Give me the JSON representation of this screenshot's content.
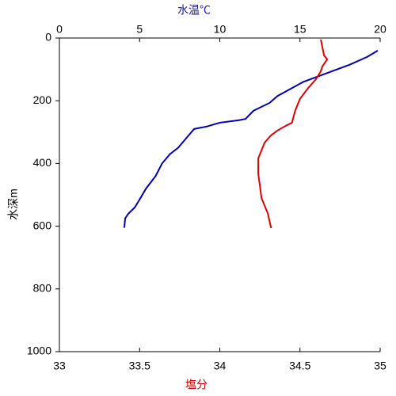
{
  "chart_data": {
    "type": "line",
    "xlabel": "塩分",
    "xlabel_color": "#cc0000",
    "x2label": "水温℃",
    "x2label_color": "#1a1aa6",
    "ylabel": "水深m",
    "xlim": [
      33,
      35
    ],
    "xticks": [
      33,
      33.5,
      34,
      34.5,
      35
    ],
    "x2lim": [
      0,
      20
    ],
    "x2ticks": [
      0,
      5,
      10,
      15,
      20
    ],
    "ylim": [
      0,
      1000
    ],
    "yticks": [
      0,
      200,
      400,
      600,
      800,
      1000
    ],
    "y_inverted": true,
    "series": [
      {
        "color": "#0000b4",
        "axis": "x2",
        "x": [
          19.85,
          19.2,
          18.1,
          17.0,
          16.05,
          15.2,
          14.6,
          13.6,
          13.1,
          12.1,
          11.6,
          11.2,
          10.0,
          9.2,
          8.4,
          7.9,
          7.4,
          6.9,
          6.4,
          6.0,
          5.4,
          5.0,
          4.7,
          4.3,
          4.1,
          4.05
        ],
        "values": [
          40,
          60,
          85,
          106,
          124,
          140,
          157,
          185,
          207,
          232,
          258,
          262,
          270,
          282,
          290,
          320,
          350,
          370,
          400,
          440,
          480,
          515,
          540,
          560,
          575,
          605
        ]
      },
      {
        "color": "#e00000",
        "axis": "x",
        "x": [
          34.63,
          34.64,
          34.65,
          34.67,
          34.64,
          34.63,
          34.6,
          34.55,
          34.5,
          34.47,
          34.45,
          34.4,
          34.36,
          34.32,
          34.28,
          34.24,
          34.24,
          34.25,
          34.26,
          34.3,
          34.32
        ],
        "values": [
          5,
          30,
          55,
          68,
          90,
          106,
          131,
          160,
          194,
          232,
          270,
          283,
          295,
          310,
          333,
          384,
          434,
          470,
          510,
          560,
          606
        ]
      }
    ]
  }
}
